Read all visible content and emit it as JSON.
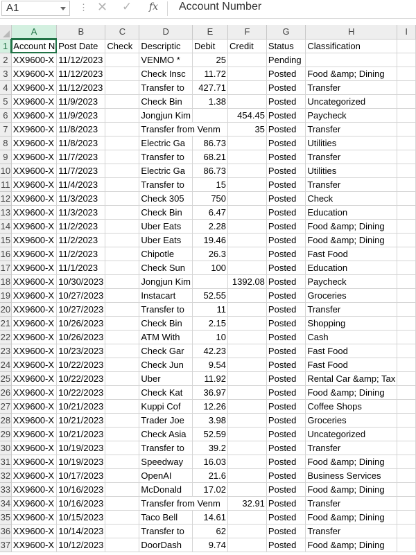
{
  "formula_bar": {
    "cell_ref": "A1",
    "formula": "Account Number",
    "fx_label": "fx",
    "cancel_glyph": "✕",
    "enter_glyph": "✓",
    "dots": "⋮"
  },
  "columns": [
    "A",
    "B",
    "C",
    "D",
    "E",
    "F",
    "G",
    "H",
    "I"
  ],
  "selected_cell": {
    "column": "A",
    "row": 1
  },
  "rows": [
    {
      "n": "1",
      "a": "Account N",
      "b": "Post Date",
      "c": "Check",
      "d": "Descriptic",
      "e": "Debit",
      "f": "Credit",
      "g": "Status",
      "h": "Classification"
    },
    {
      "n": "2",
      "a": "XX9600-X",
      "b": "11/12/2023",
      "c": "",
      "d": "VENMO  *",
      "e": "25",
      "f": "",
      "g": "Pending",
      "h": ""
    },
    {
      "n": "3",
      "a": "XX9600-X",
      "b": "11/12/2023",
      "c": "",
      "d": "Check Insc",
      "e": "11.72",
      "f": "",
      "g": "Posted",
      "h": "Food &amp; Dining"
    },
    {
      "n": "4",
      "a": "XX9600-X",
      "b": "11/12/2023",
      "c": "",
      "d": "Transfer to",
      "e": "427.71",
      "f": "",
      "g": "Posted",
      "h": "Transfer"
    },
    {
      "n": "5",
      "a": "XX9600-X",
      "b": "11/9/2023",
      "c": "",
      "d": "Check Bin",
      "e": "1.38",
      "f": "",
      "g": "Posted",
      "h": "Uncategorized"
    },
    {
      "n": "6",
      "a": "XX9600-X",
      "b": "11/9/2023",
      "c": "",
      "d": "Jongjun Kim",
      "e": "",
      "f": "454.45",
      "g": "Posted",
      "h": "Paycheck"
    },
    {
      "n": "7",
      "a": "XX9600-X",
      "b": "11/8/2023",
      "c": "",
      "d": "Transfer from Venm",
      "e": "",
      "f": "35",
      "g": "Posted",
      "h": "Transfer"
    },
    {
      "n": "8",
      "a": "XX9600-X",
      "b": "11/8/2023",
      "c": "",
      "d": "Electric Ga",
      "e": "86.73",
      "f": "",
      "g": "Posted",
      "h": "Utilities"
    },
    {
      "n": "9",
      "a": "XX9600-X",
      "b": "11/7/2023",
      "c": "",
      "d": "Transfer to",
      "e": "68.21",
      "f": "",
      "g": "Posted",
      "h": "Transfer"
    },
    {
      "n": "10",
      "a": "XX9600-X",
      "b": "11/7/2023",
      "c": "",
      "d": "Electric Ga",
      "e": "86.73",
      "f": "",
      "g": "Posted",
      "h": "Utilities"
    },
    {
      "n": "11",
      "a": "XX9600-X",
      "b": "11/4/2023",
      "c": "",
      "d": "Transfer to",
      "e": "15",
      "f": "",
      "g": "Posted",
      "h": "Transfer"
    },
    {
      "n": "12",
      "a": "XX9600-X",
      "b": "11/3/2023",
      "c": "",
      "d": "Check 305",
      "e": "750",
      "f": "",
      "g": "Posted",
      "h": "Check"
    },
    {
      "n": "13",
      "a": "XX9600-X",
      "b": "11/3/2023",
      "c": "",
      "d": "Check Bin",
      "e": "6.47",
      "f": "",
      "g": "Posted",
      "h": "Education"
    },
    {
      "n": "14",
      "a": "XX9600-X",
      "b": "11/2/2023",
      "c": "",
      "d": "Uber Eats",
      "e": "2.28",
      "f": "",
      "g": "Posted",
      "h": "Food &amp; Dining"
    },
    {
      "n": "15",
      "a": "XX9600-X",
      "b": "11/2/2023",
      "c": "",
      "d": "Uber Eats",
      "e": "19.46",
      "f": "",
      "g": "Posted",
      "h": "Food &amp; Dining"
    },
    {
      "n": "16",
      "a": "XX9600-X",
      "b": "11/2/2023",
      "c": "",
      "d": "Chipotle",
      "e": "26.3",
      "f": "",
      "g": "Posted",
      "h": "Fast Food"
    },
    {
      "n": "17",
      "a": "XX9600-X",
      "b": "11/1/2023",
      "c": "",
      "d": "Check Sun",
      "e": "100",
      "f": "",
      "g": "Posted",
      "h": "Education"
    },
    {
      "n": "18",
      "a": "XX9600-X",
      "b": "10/30/2023",
      "c": "",
      "d": "Jongjun Kim",
      "e": "",
      "f": "1392.08",
      "g": "Posted",
      "h": "Paycheck"
    },
    {
      "n": "19",
      "a": "XX9600-X",
      "b": "10/27/2023",
      "c": "",
      "d": "Instacart",
      "e": "52.55",
      "f": "",
      "g": "Posted",
      "h": "Groceries"
    },
    {
      "n": "20",
      "a": "XX9600-X",
      "b": "10/27/2023",
      "c": "",
      "d": "Transfer to",
      "e": "11",
      "f": "",
      "g": "Posted",
      "h": "Transfer"
    },
    {
      "n": "21",
      "a": "XX9600-X",
      "b": "10/26/2023",
      "c": "",
      "d": "Check Bin",
      "e": "2.15",
      "f": "",
      "g": "Posted",
      "h": "Shopping"
    },
    {
      "n": "22",
      "a": "XX9600-X",
      "b": "10/26/2023",
      "c": "",
      "d": "ATM With",
      "e": "10",
      "f": "",
      "g": "Posted",
      "h": "Cash"
    },
    {
      "n": "23",
      "a": "XX9600-X",
      "b": "10/23/2023",
      "c": "",
      "d": "Check Gar",
      "e": "42.23",
      "f": "",
      "g": "Posted",
      "h": "Fast Food"
    },
    {
      "n": "24",
      "a": "XX9600-X",
      "b": "10/22/2023",
      "c": "",
      "d": "Check Jun",
      "e": "9.54",
      "f": "",
      "g": "Posted",
      "h": "Fast Food"
    },
    {
      "n": "25",
      "a": "XX9600-X",
      "b": "10/22/2023",
      "c": "",
      "d": "Uber",
      "e": "11.92",
      "f": "",
      "g": "Posted",
      "h": "Rental Car &amp; Tax"
    },
    {
      "n": "26",
      "a": "XX9600-X",
      "b": "10/22/2023",
      "c": "",
      "d": "Check Kat",
      "e": "36.97",
      "f": "",
      "g": "Posted",
      "h": "Food &amp; Dining"
    },
    {
      "n": "27",
      "a": "XX9600-X",
      "b": "10/21/2023",
      "c": "",
      "d": "Kuppi Cof",
      "e": "12.26",
      "f": "",
      "g": "Posted",
      "h": "Coffee Shops"
    },
    {
      "n": "28",
      "a": "XX9600-X",
      "b": "10/21/2023",
      "c": "",
      "d": "Trader Joe",
      "e": "3.98",
      "f": "",
      "g": "Posted",
      "h": "Groceries"
    },
    {
      "n": "29",
      "a": "XX9600-X",
      "b": "10/21/2023",
      "c": "",
      "d": "Check Asia",
      "e": "52.59",
      "f": "",
      "g": "Posted",
      "h": "Uncategorized"
    },
    {
      "n": "30",
      "a": "XX9600-X",
      "b": "10/19/2023",
      "c": "",
      "d": "Transfer to",
      "e": "39.2",
      "f": "",
      "g": "Posted",
      "h": "Transfer"
    },
    {
      "n": "31",
      "a": "XX9600-X",
      "b": "10/19/2023",
      "c": "",
      "d": "Speedway",
      "e": "16.03",
      "f": "",
      "g": "Posted",
      "h": "Food &amp; Dining"
    },
    {
      "n": "32",
      "a": "XX9600-X",
      "b": "10/17/2023",
      "c": "",
      "d": "OpenAI",
      "e": "21.6",
      "f": "",
      "g": "Posted",
      "h": "Business Services"
    },
    {
      "n": "33",
      "a": "XX9600-X",
      "b": "10/16/2023",
      "c": "",
      "d": "McDonald",
      "e": "17.02",
      "f": "",
      "g": "Posted",
      "h": "Food &amp; Dining"
    },
    {
      "n": "34",
      "a": "XX9600-X",
      "b": "10/16/2023",
      "c": "",
      "d": "Transfer from Venm",
      "e": "",
      "f": "32.91",
      "g": "Posted",
      "h": "Transfer"
    },
    {
      "n": "35",
      "a": "XX9600-X",
      "b": "10/15/2023",
      "c": "",
      "d": "Taco Bell",
      "e": "14.61",
      "f": "",
      "g": "Posted",
      "h": "Food &amp; Dining"
    },
    {
      "n": "36",
      "a": "XX9600-X",
      "b": "10/14/2023",
      "c": "",
      "d": "Transfer to",
      "e": "62",
      "f": "",
      "g": "Posted",
      "h": "Transfer"
    },
    {
      "n": "37",
      "a": "XX9600-X",
      "b": "10/12/2023",
      "c": "",
      "d": "DoorDash",
      "e": "9.74",
      "f": "",
      "g": "Posted",
      "h": "Food &amp; Dining"
    }
  ]
}
